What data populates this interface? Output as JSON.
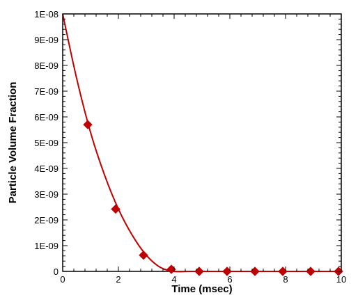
{
  "chart_data": {
    "type": "line",
    "title": "",
    "xlabel": "Time (msec)",
    "ylabel": "Particle Volume Fraction",
    "xlim": [
      0,
      10
    ],
    "ylim": [
      0,
      1e-08
    ],
    "x_ticks": [
      0,
      2,
      4,
      6,
      8,
      10
    ],
    "x_tick_labels": [
      "0",
      "2",
      "4",
      "6",
      "8",
      "10"
    ],
    "y_ticks": [
      0,
      1e-09,
      2e-09,
      3e-09,
      4e-09,
      5e-09,
      6e-09,
      7e-09,
      8e-09,
      9e-09,
      1e-08
    ],
    "y_tick_labels": [
      "0",
      "1E-09",
      "2E-09",
      "3E-09",
      "4E-09",
      "5E-09",
      "6E-09",
      "7E-09",
      "8E-09",
      "9E-09",
      "1E-08"
    ],
    "grid": false,
    "legend": "none",
    "series": [
      {
        "style": "line",
        "color": "#c00000",
        "x": [
          0,
          0.5,
          1,
          1.5,
          2,
          2.5,
          3,
          3.5,
          4,
          4.5,
          5,
          6,
          7,
          8,
          9,
          10
        ],
        "values": [
          1e-08,
          7.5e-09,
          5.4e-09,
          3.75e-09,
          2.42e-09,
          1.4e-09,
          6.3e-10,
          1.6e-10,
          0,
          0,
          0,
          0,
          0,
          0,
          0,
          0
        ]
      },
      {
        "style": "markers",
        "marker": "diamond",
        "color": "#c00000",
        "x": [
          0.9,
          1.9,
          2.9,
          3.9,
          4.9,
          5.9,
          6.9,
          7.9,
          8.9,
          9.9
        ],
        "values": [
          5.7e-09,
          2.42e-09,
          6.3e-10,
          8e-11,
          0,
          0,
          0,
          0,
          0,
          0
        ]
      }
    ]
  }
}
